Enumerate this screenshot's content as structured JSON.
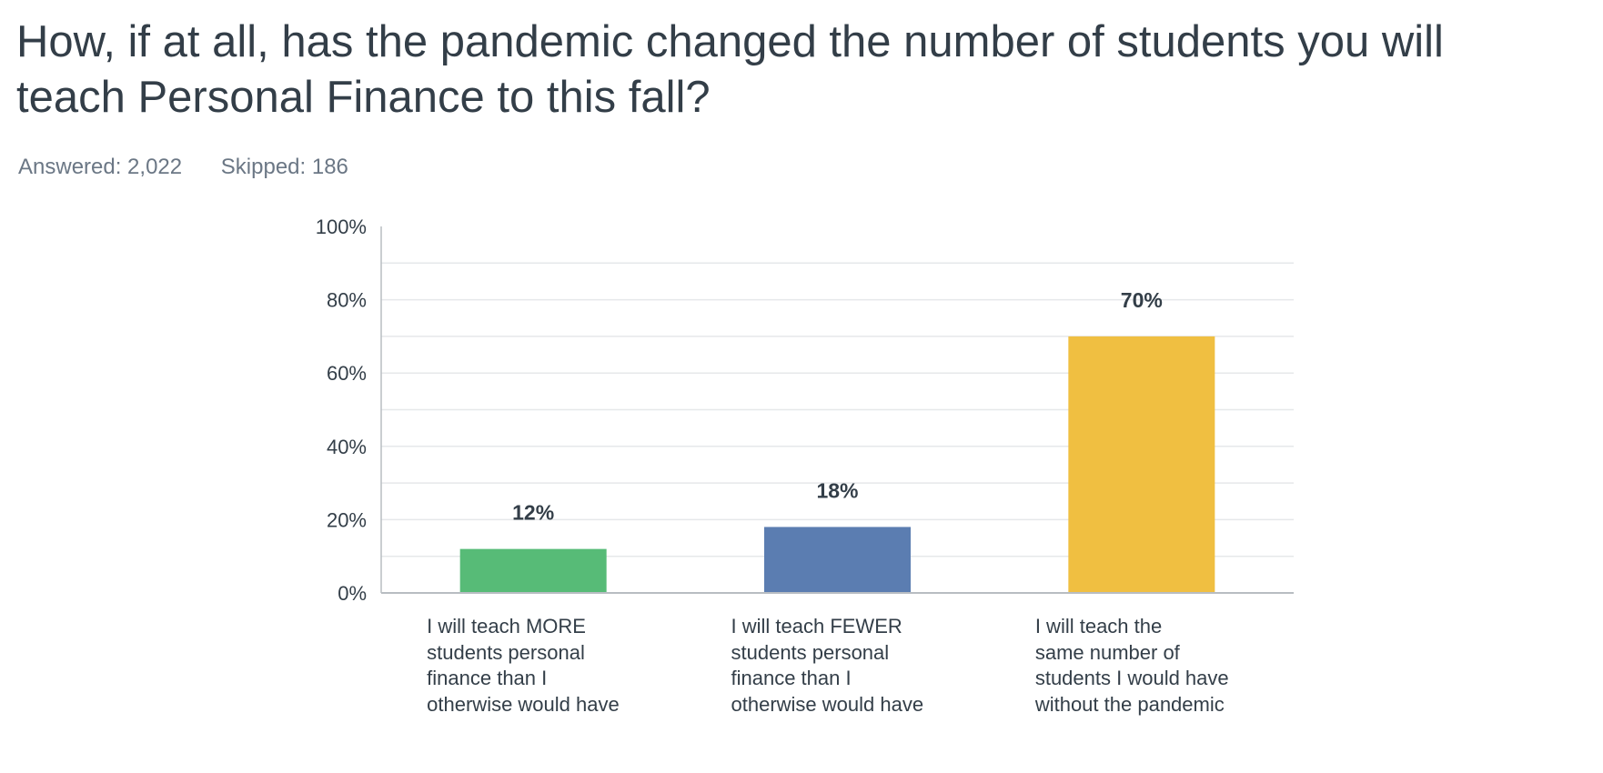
{
  "question": {
    "title": "How, if at all, has the pandemic changed the number of students you will teach Personal Finance to this fall?",
    "answered": "Answered: 2,022",
    "skipped": "Skipped: 186"
  },
  "chart_data": {
    "type": "bar",
    "categories": [
      "I will teach MORE students personal finance than I otherwise would have",
      "I will teach FEWER students personal finance than I otherwise would have",
      "I will teach the same number of students I would have without the pandemic"
    ],
    "category_lines": [
      [
        "I will teach MORE",
        "students personal",
        "finance than I",
        "otherwise would have"
      ],
      [
        "I will teach FEWER",
        "students personal",
        "finance than I",
        "otherwise would have"
      ],
      [
        "I will teach the",
        "same number of",
        "students I would have",
        "without the pandemic"
      ]
    ],
    "values": [
      12,
      18,
      70
    ],
    "value_labels": [
      "12%",
      "18%",
      "70%"
    ],
    "colors": [
      "#57bb77",
      "#5b7db1",
      "#f0bf41"
    ],
    "ylim": [
      0,
      100
    ],
    "yticks": [
      0,
      20,
      40,
      60,
      80,
      100
    ],
    "ytick_labels": [
      "0%",
      "20%",
      "40%",
      "60%",
      "80%",
      "100%"
    ],
    "grid": true,
    "xlabel": "",
    "ylabel": ""
  }
}
